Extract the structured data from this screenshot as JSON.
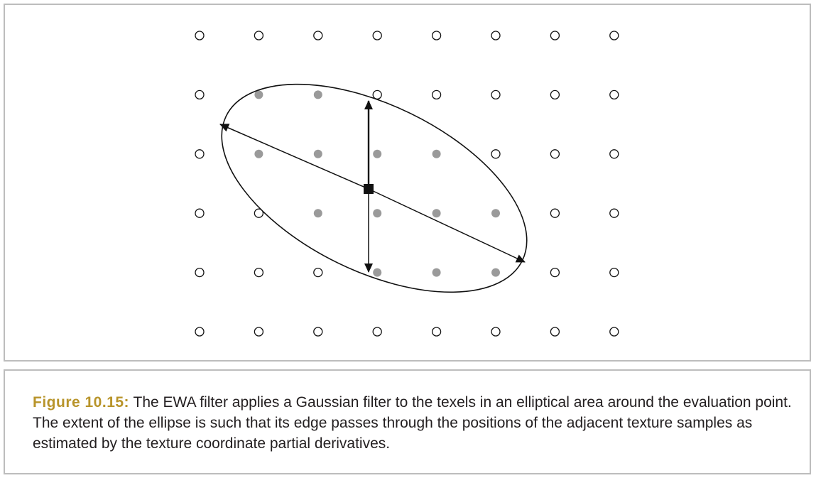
{
  "caption": {
    "label": "Figure 10.15:",
    "text": " The EWA filter applies a Gaussian filter to the texels in an elliptical area around the evaluation point. The extent of the ellipse is such that its edge passes through the positions of the adjacent texture samples as estimated by the texture coordinate partial derivatives."
  },
  "diagram": {
    "grid": {
      "columns": 8,
      "rows": 6
    },
    "inside_samples": [
      [
        1,
        1
      ],
      [
        2,
        1
      ],
      [
        1,
        2
      ],
      [
        2,
        2
      ],
      [
        3,
        2
      ],
      [
        4,
        2
      ],
      [
        2,
        3
      ],
      [
        3,
        3
      ],
      [
        4,
        3
      ],
      [
        5,
        3
      ],
      [
        3,
        4
      ],
      [
        4,
        4
      ],
      [
        5,
        4
      ]
    ],
    "colors": {
      "stroke": "#111111",
      "inside_sample": "#9a9a9a",
      "outside_sample": "#ffffff",
      "caption_label": "#b8942a"
    }
  }
}
